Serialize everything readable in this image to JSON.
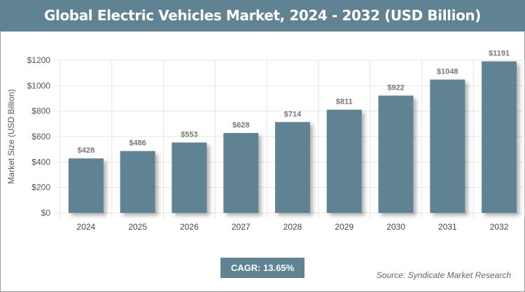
{
  "title": "Global Electric Vehicles Market, 2024 - 2032 (USD Billion)",
  "cagr": "CAGR: 13.65%",
  "source": "Source: Syndicate Market Research",
  "colors": {
    "bar": "#5f8393",
    "header": "#5f8393"
  },
  "chart_data": {
    "type": "bar",
    "title": "Global Electric Vehicles Market, 2024 - 2032 (USD Billion)",
    "xlabel": "",
    "ylabel": "Market Size (USD Billion)",
    "categories": [
      "2024",
      "2025",
      "2026",
      "2027",
      "2028",
      "2029",
      "2030",
      "2031",
      "2032"
    ],
    "values": [
      428,
      486,
      553,
      628,
      714,
      811,
      922,
      1048,
      1191
    ],
    "data_labels": [
      "$428",
      "$486",
      "$553",
      "$628",
      "$714",
      "$811",
      "$922",
      "$1048",
      "$1191"
    ],
    "ylim": [
      0,
      1200
    ],
    "yticks": [
      0,
      200,
      400,
      600,
      800,
      1000,
      1200
    ],
    "ytick_labels": [
      "$0",
      "$200",
      "$400",
      "$600",
      "$800",
      "$1000",
      "$1200"
    ],
    "grid": true,
    "legend": "none"
  }
}
